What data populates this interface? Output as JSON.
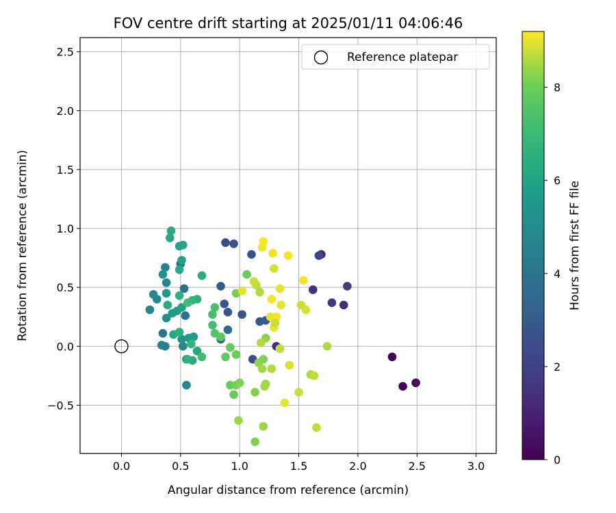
{
  "chart_data": {
    "type": "scatter",
    "title": "FOV centre drift starting at 2025/01/11 04:06:46",
    "xlabel": "Angular distance from reference (arcmin)",
    "ylabel": "Rotation from reference (arcmin)",
    "xlim": [
      -0.35,
      3.17
    ],
    "ylim": [
      -0.91,
      2.62
    ],
    "xticks": [
      0.0,
      0.5,
      1.0,
      1.5,
      2.0,
      2.5,
      3.0
    ],
    "xtick_labels": [
      "0.0",
      "0.5",
      "1.0",
      "1.5",
      "2.0",
      "2.5",
      "3.0"
    ],
    "yticks": [
      -0.5,
      0.0,
      0.5,
      1.0,
      1.5,
      2.0,
      2.5
    ],
    "ytick_labels": [
      "−0.5",
      "0.0",
      "0.5",
      "1.0",
      "1.5",
      "2.0",
      "2.5"
    ],
    "grid": true,
    "legend": {
      "location": "top-right",
      "entries": [
        "Reference platepar"
      ]
    },
    "reference_point": {
      "x": 0.0,
      "y": 0.0,
      "label": "Reference platepar"
    },
    "colorbar": {
      "label": "Hours from first FF file",
      "min": 0,
      "max": 9.2,
      "ticks": [
        0,
        2,
        4,
        6,
        8
      ],
      "tick_labels": [
        "0",
        "2",
        "4",
        "6",
        "8"
      ],
      "colormap": "viridis"
    },
    "points": [
      {
        "x": 2.29,
        "y": -0.09,
        "h": 0.1
      },
      {
        "x": 2.38,
        "y": -0.34,
        "h": 0.1
      },
      {
        "x": 2.49,
        "y": -0.31,
        "h": 0.1
      },
      {
        "x": 1.69,
        "y": 0.78,
        "h": 1.0
      },
      {
        "x": 1.67,
        "y": 0.77,
        "h": 2.2
      },
      {
        "x": 1.62,
        "y": 0.48,
        "h": 1.5
      },
      {
        "x": 1.78,
        "y": 0.37,
        "h": 1.6
      },
      {
        "x": 1.88,
        "y": 0.35,
        "h": 1.3
      },
      {
        "x": 1.91,
        "y": 0.51,
        "h": 1.8
      },
      {
        "x": 1.31,
        "y": 0.0,
        "h": 1.2
      },
      {
        "x": 0.88,
        "y": 0.88,
        "h": 2.5
      },
      {
        "x": 0.95,
        "y": 0.87,
        "h": 2.6
      },
      {
        "x": 1.1,
        "y": 0.78,
        "h": 2.6
      },
      {
        "x": 0.84,
        "y": 0.51,
        "h": 2.9
      },
      {
        "x": 0.87,
        "y": 0.36,
        "h": 2.9
      },
      {
        "x": 0.9,
        "y": 0.29,
        "h": 2.8
      },
      {
        "x": 1.02,
        "y": 0.27,
        "h": 2.7
      },
      {
        "x": 1.17,
        "y": 0.21,
        "h": 2.8
      },
      {
        "x": 1.22,
        "y": 0.22,
        "h": 2.9
      },
      {
        "x": 1.11,
        "y": -0.11,
        "h": 2.5
      },
      {
        "x": 0.84,
        "y": 0.06,
        "h": 3.0
      },
      {
        "x": 0.9,
        "y": 0.14,
        "h": 3.6
      },
      {
        "x": 0.54,
        "y": 0.26,
        "h": 3.9
      },
      {
        "x": 0.53,
        "y": 0.49,
        "h": 3.7
      },
      {
        "x": 0.35,
        "y": 0.11,
        "h": 4.0
      },
      {
        "x": 0.5,
        "y": 0.7,
        "h": 4.0
      },
      {
        "x": 0.37,
        "y": 0.67,
        "h": 4.5
      },
      {
        "x": 0.38,
        "y": 0.54,
        "h": 4.7
      },
      {
        "x": 0.35,
        "y": 0.61,
        "h": 5.3
      },
      {
        "x": 0.24,
        "y": 0.31,
        "h": 4.7
      },
      {
        "x": 0.27,
        "y": 0.44,
        "h": 4.8
      },
      {
        "x": 0.3,
        "y": 0.4,
        "h": 4.9
      },
      {
        "x": 0.34,
        "y": 0.01,
        "h": 4.7
      },
      {
        "x": 0.37,
        "y": 0.0,
        "h": 4.5
      },
      {
        "x": 0.38,
        "y": 0.45,
        "h": 5.5
      },
      {
        "x": 0.38,
        "y": 0.24,
        "h": 5.2
      },
      {
        "x": 0.43,
        "y": 0.28,
        "h": 5.6
      },
      {
        "x": 0.47,
        "y": 0.3,
        "h": 5.8
      },
      {
        "x": 0.52,
        "y": 0.0,
        "h": 4.8
      },
      {
        "x": 0.51,
        "y": 0.06,
        "h": 5.3
      },
      {
        "x": 0.55,
        "y": -0.11,
        "h": 4.9
      },
      {
        "x": 0.55,
        "y": -0.33,
        "h": 4.8
      },
      {
        "x": 0.57,
        "y": 0.07,
        "h": 5.6
      },
      {
        "x": 0.51,
        "y": 0.33,
        "h": 5.9
      },
      {
        "x": 0.49,
        "y": 0.85,
        "h": 6.0
      },
      {
        "x": 0.52,
        "y": 0.86,
        "h": 6.1
      },
      {
        "x": 0.42,
        "y": 0.98,
        "h": 6.3
      },
      {
        "x": 0.41,
        "y": 0.92,
        "h": 6.2
      },
      {
        "x": 0.51,
        "y": 0.73,
        "h": 5.9
      },
      {
        "x": 0.49,
        "y": 0.65,
        "h": 6.2
      },
      {
        "x": 0.49,
        "y": 0.43,
        "h": 6.5
      },
      {
        "x": 0.39,
        "y": 0.35,
        "h": 6.3
      },
      {
        "x": 0.44,
        "y": 0.1,
        "h": 6.1
      },
      {
        "x": 0.49,
        "y": 0.12,
        "h": 6.6
      },
      {
        "x": 0.61,
        "y": 0.08,
        "h": 5.8
      },
      {
        "x": 0.64,
        "y": -0.04,
        "h": 6.1
      },
      {
        "x": 0.6,
        "y": -0.12,
        "h": 6.4
      },
      {
        "x": 0.56,
        "y": -0.11,
        "h": 6.7
      },
      {
        "x": 0.59,
        "y": 0.02,
        "h": 6.8
      },
      {
        "x": 0.68,
        "y": 0.6,
        "h": 6.4
      },
      {
        "x": 0.64,
        "y": 0.4,
        "h": 6.6
      },
      {
        "x": 0.6,
        "y": 0.39,
        "h": 6.8
      },
      {
        "x": 0.56,
        "y": 0.37,
        "h": 7.1
      },
      {
        "x": 0.68,
        "y": -0.09,
        "h": 7.2
      },
      {
        "x": 0.77,
        "y": 0.27,
        "h": 7.2
      },
      {
        "x": 0.79,
        "y": 0.33,
        "h": 7.3
      },
      {
        "x": 0.77,
        "y": 0.18,
        "h": 7.2
      },
      {
        "x": 0.79,
        "y": 0.11,
        "h": 7.5
      },
      {
        "x": 0.84,
        "y": 0.08,
        "h": 7.7
      },
      {
        "x": 0.88,
        "y": -0.09,
        "h": 7.7
      },
      {
        "x": 0.92,
        "y": -0.01,
        "h": 7.8
      },
      {
        "x": 0.92,
        "y": -0.33,
        "h": 7.9
      },
      {
        "x": 0.95,
        "y": -0.41,
        "h": 7.9
      },
      {
        "x": 0.97,
        "y": -0.33,
        "h": 8.1
      },
      {
        "x": 1.0,
        "y": -0.31,
        "h": 8.2
      },
      {
        "x": 0.97,
        "y": -0.07,
        "h": 8.0
      },
      {
        "x": 0.97,
        "y": 0.45,
        "h": 8.1
      },
      {
        "x": 1.06,
        "y": 0.61,
        "h": 7.9
      },
      {
        "x": 0.99,
        "y": -0.63,
        "h": 8.4
      },
      {
        "x": 1.13,
        "y": -0.39,
        "h": 8.2
      },
      {
        "x": 1.13,
        "y": -0.81,
        "h": 8.2
      },
      {
        "x": 1.2,
        "y": -0.68,
        "h": 8.4
      },
      {
        "x": 1.16,
        "y": -0.14,
        "h": 8.3
      },
      {
        "x": 1.19,
        "y": -0.19,
        "h": 8.5
      },
      {
        "x": 1.2,
        "y": -0.11,
        "h": 8.2
      },
      {
        "x": 1.22,
        "y": -0.32,
        "h": 8.4
      },
      {
        "x": 1.21,
        "y": -0.34,
        "h": 8.5
      },
      {
        "x": 1.22,
        "y": 0.07,
        "h": 8.3
      },
      {
        "x": 1.18,
        "y": 0.03,
        "h": 8.6
      },
      {
        "x": 1.27,
        "y": -0.19,
        "h": 8.6
      },
      {
        "x": 1.34,
        "y": -0.02,
        "h": 8.7
      },
      {
        "x": 1.17,
        "y": 0.46,
        "h": 8.6
      },
      {
        "x": 1.14,
        "y": 0.52,
        "h": 8.7
      },
      {
        "x": 1.12,
        "y": 0.55,
        "h": 8.8
      },
      {
        "x": 1.02,
        "y": 0.47,
        "h": 9.0
      },
      {
        "x": 1.19,
        "y": 0.84,
        "h": 9.1
      },
      {
        "x": 1.2,
        "y": 0.89,
        "h": 9.2
      },
      {
        "x": 1.28,
        "y": 0.79,
        "h": 9.1
      },
      {
        "x": 1.29,
        "y": 0.66,
        "h": 8.9
      },
      {
        "x": 1.34,
        "y": 0.49,
        "h": 9.0
      },
      {
        "x": 1.27,
        "y": 0.4,
        "h": 9.1
      },
      {
        "x": 1.35,
        "y": 0.35,
        "h": 9.0
      },
      {
        "x": 1.26,
        "y": 0.25,
        "h": 9.0
      },
      {
        "x": 1.31,
        "y": 0.25,
        "h": 9.1
      },
      {
        "x": 1.29,
        "y": 0.16,
        "h": 9.0
      },
      {
        "x": 1.3,
        "y": 0.2,
        "h": 8.8
      },
      {
        "x": 1.41,
        "y": 0.77,
        "h": 9.1
      },
      {
        "x": 1.54,
        "y": 0.56,
        "h": 9.1
      },
      {
        "x": 1.52,
        "y": 0.35,
        "h": 8.8
      },
      {
        "x": 1.56,
        "y": 0.31,
        "h": 8.9
      },
      {
        "x": 1.42,
        "y": -0.16,
        "h": 8.9
      },
      {
        "x": 1.5,
        "y": -0.39,
        "h": 8.8
      },
      {
        "x": 1.38,
        "y": -0.48,
        "h": 9.0
      },
      {
        "x": 1.6,
        "y": -0.24,
        "h": 8.6
      },
      {
        "x": 1.63,
        "y": -0.25,
        "h": 8.7
      },
      {
        "x": 1.65,
        "y": -0.69,
        "h": 8.7
      },
      {
        "x": 1.74,
        "y": 0.0,
        "h": 8.6
      }
    ]
  }
}
